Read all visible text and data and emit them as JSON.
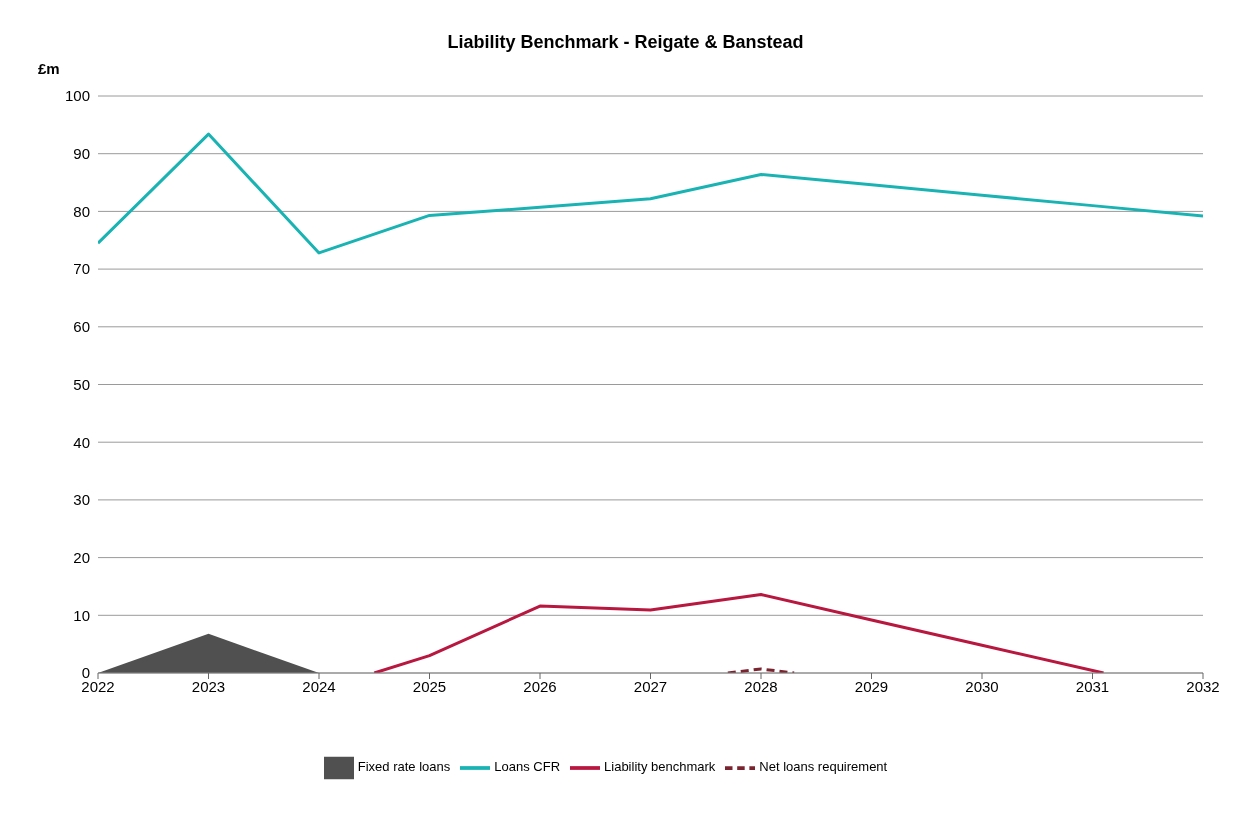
{
  "chart_data": {
    "type": "line",
    "title": "Liability Benchmark - Reigate & Banstead",
    "ylabel": "£m",
    "xlim": [
      2022,
      2032
    ],
    "xticks": [
      2022,
      2023,
      2024,
      2025,
      2026,
      2027,
      2028,
      2029,
      2030,
      2031,
      2032
    ],
    "ylim": [
      0,
      100
    ],
    "yticks": [
      0,
      10,
      20,
      30,
      40,
      50,
      60,
      70,
      80,
      90,
      100
    ],
    "grid": "y",
    "legend": "bottom",
    "marker": "none",
    "series": [
      {
        "name": "Fixed rate loans",
        "type": "area",
        "color": "#505050",
        "x": [
          2022,
          2023,
          2024
        ],
        "values": [
          0,
          6.8,
          0
        ]
      },
      {
        "name": "Loans CFR",
        "color": "#1ab3b3",
        "line_style": "solid",
        "x": [
          2022,
          2023,
          2024,
          2025,
          2026,
          2027,
          2028,
          2029,
          2030,
          2031,
          2032
        ],
        "values": [
          74.5,
          93.4,
          72.8,
          79.3,
          80.7,
          82.2,
          86.4,
          84.6,
          82.8,
          81,
          79.2
        ]
      },
      {
        "name": "Liability benchmark",
        "color": "#b8173f",
        "line_style": "solid",
        "x": [
          2024.5,
          2025,
          2026,
          2027,
          2028,
          2029,
          2030,
          2031.1
        ],
        "values": [
          0,
          3,
          11.6,
          10.9,
          13.6,
          9.2,
          4.8,
          0
        ]
      },
      {
        "name": "Net loans requirement",
        "color": "#7a2430",
        "line_style": "dashed",
        "x": [
          2027.7,
          2028,
          2028.3
        ],
        "values": [
          0,
          0.7,
          0
        ]
      }
    ]
  }
}
